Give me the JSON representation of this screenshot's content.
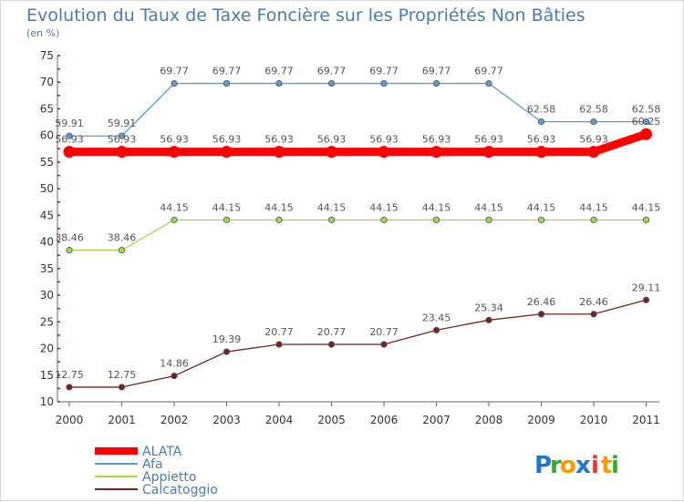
{
  "chart_data": {
    "type": "line",
    "title": "Evolution du Taux de Taxe Foncière sur les Propriétés Non Bâties",
    "subtitle": "(en %)",
    "xlabel": "",
    "ylabel": "",
    "ylim": [
      10,
      75
    ],
    "yticks": [
      10,
      15,
      20,
      25,
      30,
      35,
      40,
      45,
      50,
      55,
      60,
      65,
      70,
      75
    ],
    "x": [
      "2000",
      "2001",
      "2002",
      "2003",
      "2004",
      "2005",
      "2006",
      "2007",
      "2008",
      "2009",
      "2010",
      "2011"
    ],
    "grid": false,
    "legend_position": "bottom-left",
    "series": [
      {
        "name": "ALATA",
        "color": "#ff0000",
        "values": [
          56.93,
          56.93,
          56.93,
          56.93,
          56.93,
          56.93,
          56.93,
          56.93,
          56.93,
          56.93,
          56.93,
          60.25
        ],
        "labels": [
          "56.93",
          "56.93",
          "56.93",
          "56.93",
          "56.93",
          "56.93",
          "56.93",
          "56.93",
          "56.93",
          "56.93",
          "56.93",
          "60.25"
        ]
      },
      {
        "name": "Afa",
        "color": "#5b9bd5",
        "values": [
          59.91,
          59.91,
          69.77,
          69.77,
          69.77,
          69.77,
          69.77,
          69.77,
          69.77,
          62.58,
          62.58,
          62.58
        ],
        "labels": [
          "59.91",
          "59.91",
          "69.77",
          "69.77",
          "69.77",
          "69.77",
          "69.77",
          "69.77",
          "69.77",
          "62.58",
          "62.58",
          "62.58"
        ]
      },
      {
        "name": "Appietto",
        "color": "#99dd44",
        "values": [
          38.46,
          38.46,
          44.15,
          44.15,
          44.15,
          44.15,
          44.15,
          44.15,
          44.15,
          44.15,
          44.15,
          44.15
        ],
        "labels": [
          "38.46",
          "38.46",
          "44.15",
          "44.15",
          "44.15",
          "44.15",
          "44.15",
          "44.15",
          "44.15",
          "44.15",
          "44.15",
          "44.15"
        ]
      },
      {
        "name": "Calcatoggio",
        "color": "#772222",
        "values": [
          12.75,
          12.75,
          14.86,
          19.39,
          20.77,
          20.77,
          20.77,
          23.45,
          25.34,
          26.46,
          26.46,
          29.11
        ],
        "labels": [
          "12.75",
          "12.75",
          "14.86",
          "19.39",
          "20.77",
          "20.77",
          "20.77",
          "23.45",
          "25.34",
          "26.46",
          "26.46",
          "29.11"
        ]
      }
    ]
  },
  "brand": {
    "letters": [
      "P",
      "r",
      "o",
      "x",
      "i",
      "t",
      "i"
    ],
    "colors": [
      "#2277cc",
      "#33aa33",
      "#ff9900",
      "#2277cc",
      "#ee3333",
      "#ff9900",
      "#33aa33"
    ]
  }
}
